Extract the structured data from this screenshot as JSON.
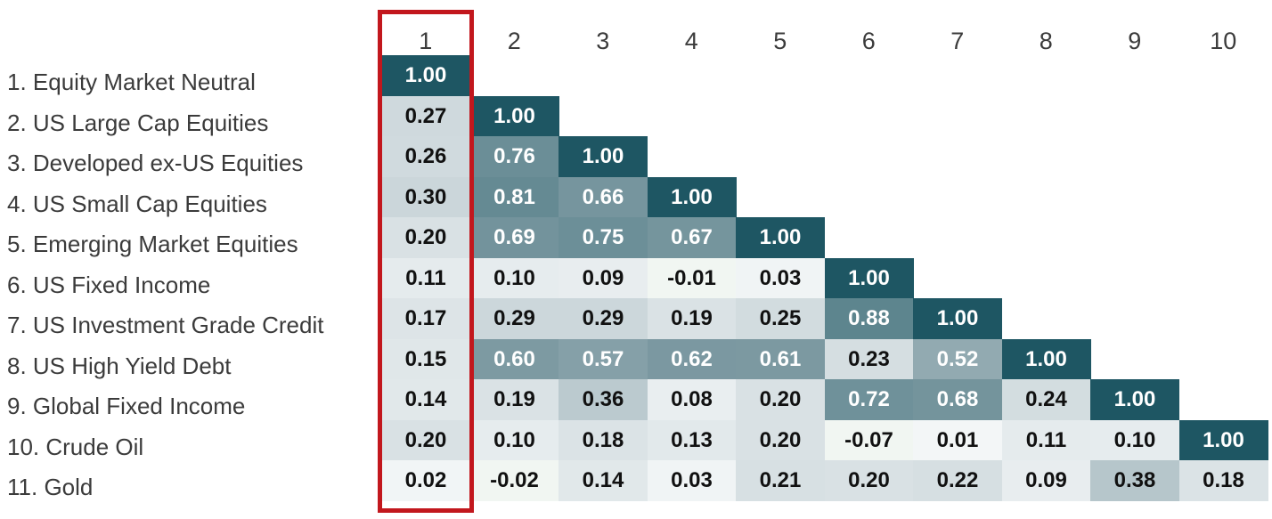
{
  "chart_data": {
    "type": "heatmap",
    "row_labels": [
      "1. Equity Market Neutral",
      "2. US Large Cap Equities",
      "3. Developed ex-US Equities",
      "4. US Small Cap Equities",
      "5. Emerging Market Equities",
      "6. US Fixed Income",
      "7. US Investment Grade Credit",
      "8. US High Yield Debt",
      "9. Global Fixed Income",
      "10. Crude Oil",
      "11. Gold"
    ],
    "column_labels": [
      "1",
      "2",
      "3",
      "4",
      "5",
      "6",
      "7",
      "8",
      "9",
      "10"
    ],
    "values": [
      [
        "1.00",
        null,
        null,
        null,
        null,
        null,
        null,
        null,
        null,
        null
      ],
      [
        "0.27",
        "1.00",
        null,
        null,
        null,
        null,
        null,
        null,
        null,
        null
      ],
      [
        "0.26",
        "0.76",
        "1.00",
        null,
        null,
        null,
        null,
        null,
        null,
        null
      ],
      [
        "0.30",
        "0.81",
        "0.66",
        "1.00",
        null,
        null,
        null,
        null,
        null,
        null
      ],
      [
        "0.20",
        "0.69",
        "0.75",
        "0.67",
        "1.00",
        null,
        null,
        null,
        null,
        null
      ],
      [
        "0.11",
        "0.10",
        "0.09",
        "-0.01",
        "0.03",
        "1.00",
        null,
        null,
        null,
        null
      ],
      [
        "0.17",
        "0.29",
        "0.29",
        "0.19",
        "0.25",
        "0.88",
        "1.00",
        null,
        null,
        null
      ],
      [
        "0.15",
        "0.60",
        "0.57",
        "0.62",
        "0.61",
        "0.23",
        "0.52",
        "1.00",
        null,
        null
      ],
      [
        "0.14",
        "0.19",
        "0.36",
        "0.08",
        "0.20",
        "0.72",
        "0.68",
        "0.24",
        "1.00",
        null
      ],
      [
        "0.20",
        "0.10",
        "0.18",
        "0.13",
        "0.20",
        "-0.07",
        "0.01",
        "0.11",
        "0.10",
        "1.00"
      ],
      [
        "0.02",
        "-0.02",
        "0.14",
        "0.03",
        "0.21",
        "0.20",
        "0.22",
        "0.09",
        "0.38",
        "0.18"
      ]
    ],
    "highlighted_column": "1",
    "colors": {
      "max": "#1e5663",
      "high": "#5b838d",
      "mid": "#7d9aa2",
      "low": "#cbd6da",
      "min": "#eef5ee",
      "highlight_border": "#c2171d",
      "text_dark": "#111111",
      "text_light": "#ffffff"
    }
  }
}
